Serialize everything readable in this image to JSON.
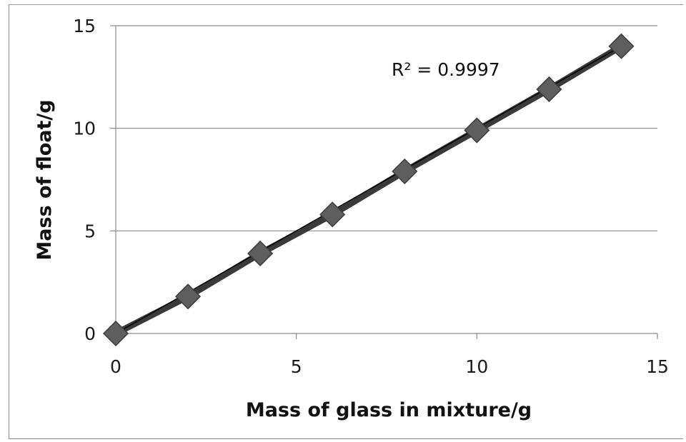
{
  "chart_data": {
    "type": "scatter",
    "title": "",
    "xlabel": "Mass of glass in mixture/g",
    "ylabel": "Mass of float/g",
    "xlim": [
      0,
      15
    ],
    "ylim": [
      0,
      15
    ],
    "x_ticks": [
      "0",
      "5",
      "10",
      "15"
    ],
    "y_ticks": [
      "0",
      "5",
      "10",
      "15"
    ],
    "grid": "horizontal",
    "legend": "none",
    "series": [
      {
        "x": [
          0,
          2,
          4,
          6,
          8,
          10,
          12,
          14
        ],
        "y": [
          0,
          1.8,
          3.9,
          5.8,
          7.9,
          9.9,
          11.9,
          14.0
        ],
        "marker": "diamond",
        "marker_color": "#5e5e5e",
        "line_color": "#3a3a3a"
      }
    ],
    "trendline": {
      "type": "linear",
      "x": [
        0,
        14
      ],
      "y": [
        0,
        14.0
      ],
      "color": "#000000"
    },
    "annotations": [
      "R² = 0.9997"
    ]
  }
}
